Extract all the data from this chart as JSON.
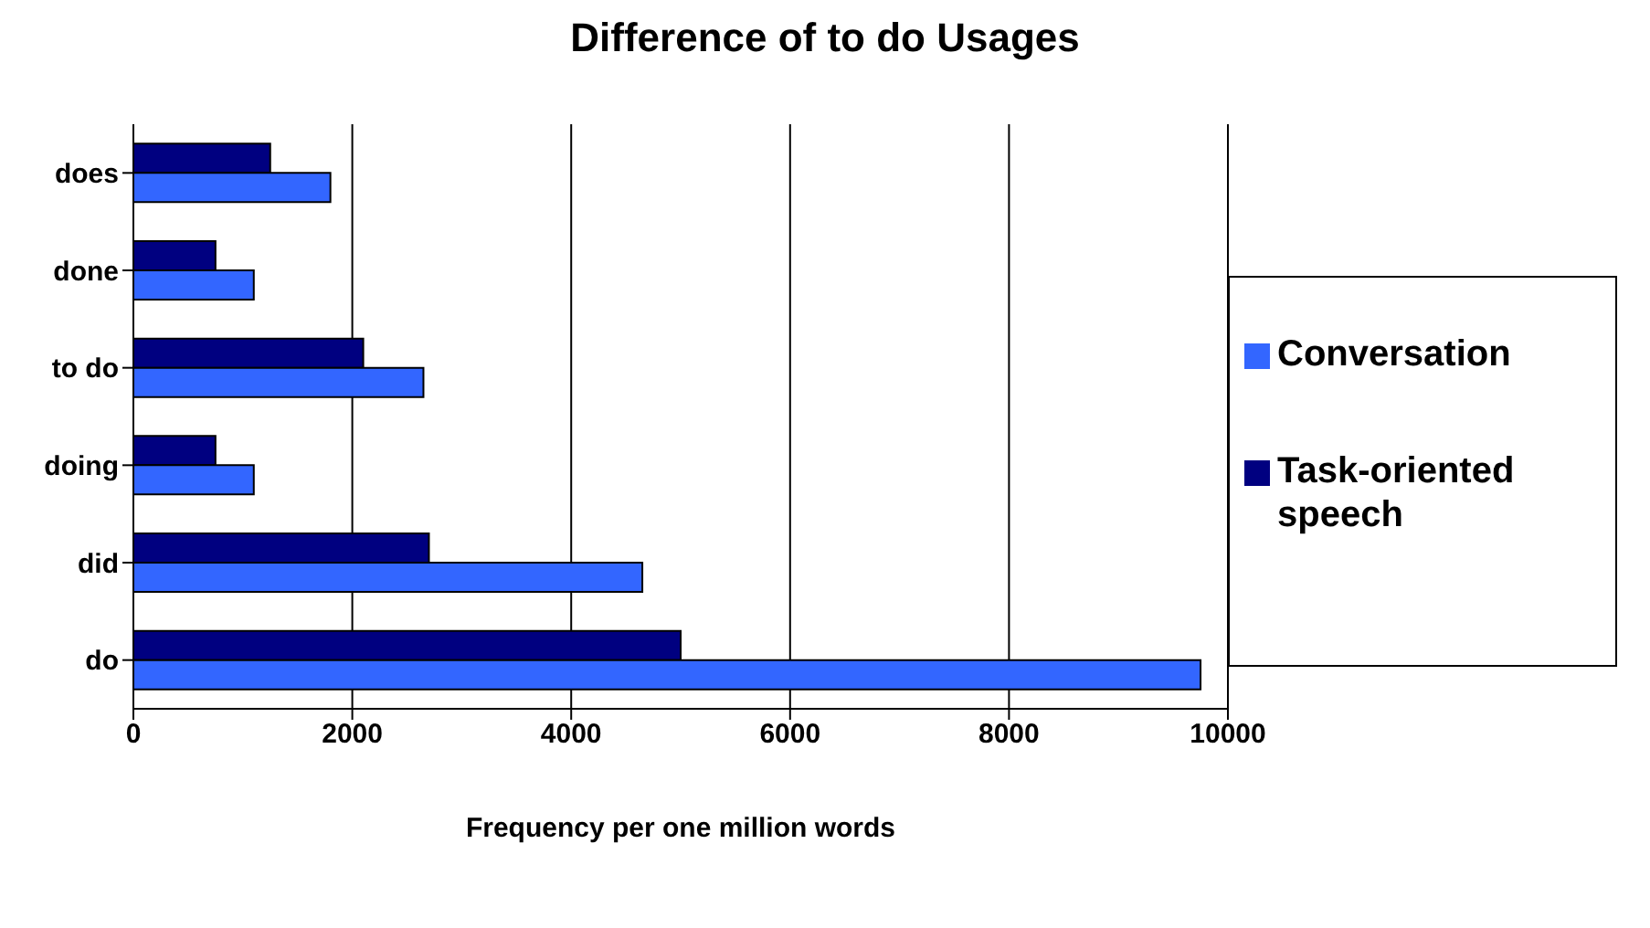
{
  "chart_data": {
    "type": "bar",
    "orientation": "horizontal",
    "title": "Difference of to do Usages",
    "xlabel": "Frequency per one million words",
    "categories": [
      "does",
      "done",
      "to do",
      "doing",
      "did",
      "do"
    ],
    "series": [
      {
        "name": "Task-oriented speech",
        "color": "#000080",
        "values": [
          1250,
          750,
          2100,
          750,
          2700,
          5000
        ]
      },
      {
        "name": "Conversation",
        "color": "#3366ff",
        "values": [
          1800,
          1100,
          2650,
          1100,
          4650,
          9750
        ]
      }
    ],
    "xlim": [
      0,
      10000
    ],
    "xticks": [
      0,
      2000,
      4000,
      6000,
      8000,
      10000
    ],
    "grid": "x",
    "legend": "right"
  }
}
